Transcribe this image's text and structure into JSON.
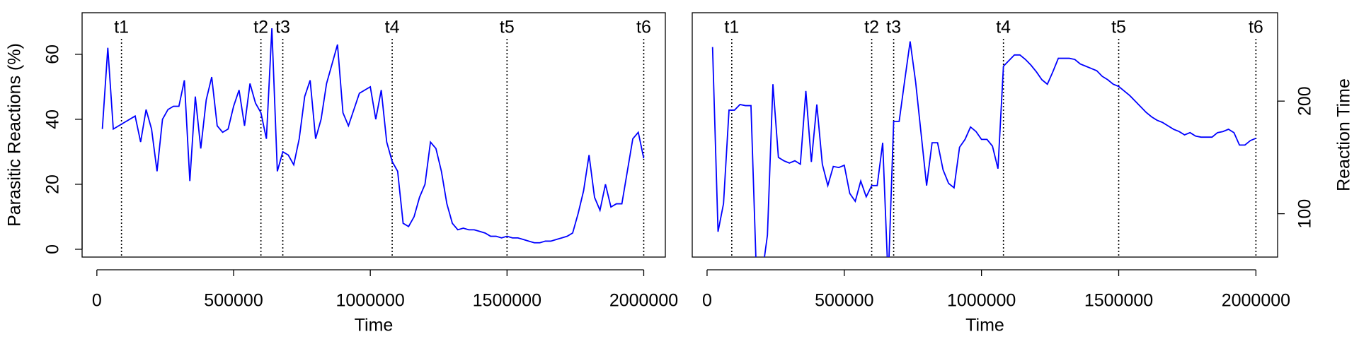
{
  "chart_data": [
    {
      "type": "line",
      "x_label": "Time",
      "y_label": "Parasitic Reactions (%)",
      "y_axis_side": "left",
      "xlim": [
        -54000,
        2079000
      ],
      "xticks": [
        0,
        500000,
        1000000,
        1500000,
        2000000
      ],
      "ylim": [
        -2.4,
        72.8
      ],
      "yticks": [
        0,
        20,
        40,
        60
      ],
      "vlines": [
        {
          "value": 90000,
          "label": "t1"
        },
        {
          "value": 600000,
          "label": "t2"
        },
        {
          "value": 680000,
          "label": "t3"
        },
        {
          "value": 1080000,
          "label": "t4"
        },
        {
          "value": 1500000,
          "label": "t5"
        },
        {
          "value": 2000000,
          "label": "t6"
        }
      ],
      "x": [
        20000,
        40000,
        60000,
        80000,
        100000,
        140000,
        160000,
        180000,
        200000,
        220000,
        240000,
        260000,
        280000,
        300000,
        320000,
        340000,
        360000,
        380000,
        400000,
        420000,
        440000,
        460000,
        480000,
        500000,
        520000,
        540000,
        560000,
        580000,
        600000,
        620000,
        640000,
        660000,
        680000,
        700000,
        720000,
        740000,
        760000,
        780000,
        800000,
        820000,
        840000,
        860000,
        880000,
        900000,
        920000,
        940000,
        960000,
        980000,
        1000000,
        1020000,
        1040000,
        1060000,
        1080000,
        1100000,
        1120000,
        1140000,
        1160000,
        1180000,
        1200000,
        1220000,
        1240000,
        1260000,
        1280000,
        1300000,
        1320000,
        1340000,
        1360000,
        1380000,
        1400000,
        1420000,
        1440000,
        1460000,
        1480000,
        1500000,
        1520000,
        1540000,
        1560000,
        1580000,
        1600000,
        1620000,
        1640000,
        1660000,
        1680000,
        1700000,
        1720000,
        1740000,
        1760000,
        1780000,
        1800000,
        1820000,
        1840000,
        1860000,
        1880000,
        1900000,
        1920000,
        1940000,
        1960000,
        1980000,
        2000000
      ],
      "series": [
        {
          "color": "#0000ff",
          "values": [
            37,
            62,
            37,
            38,
            39,
            41,
            33,
            43,
            37,
            24,
            40,
            43,
            44,
            44,
            52,
            21,
            47,
            31,
            46,
            53,
            38,
            36,
            37,
            44,
            49,
            38,
            51,
            45,
            42,
            34,
            68,
            24,
            30,
            29,
            26,
            34,
            47,
            52,
            34,
            40,
            51,
            57,
            63,
            42,
            38,
            43,
            48,
            49,
            50,
            40,
            49,
            33,
            27,
            24,
            8,
            7,
            10,
            16,
            20,
            33,
            31,
            24,
            14,
            8,
            6,
            6.5,
            6,
            6,
            5.5,
            5,
            4,
            4,
            3.5,
            4,
            3.5,
            3.5,
            3,
            2.5,
            2,
            2,
            2.5,
            2.5,
            3,
            3.5,
            4,
            5,
            11,
            18,
            29,
            16,
            12,
            20,
            13,
            14,
            14,
            24,
            34,
            36,
            28
          ]
        }
      ]
    },
    {
      "type": "line",
      "x_label": "Time",
      "y_label": "Reaction Time",
      "y_axis_side": "right",
      "xlim": [
        -54000,
        2079000
      ],
      "xticks": [
        0,
        500000,
        1000000,
        1500000,
        2000000
      ],
      "ylim": [
        61.5,
        278.5
      ],
      "yticks": [
        100,
        200
      ],
      "vlines": [
        {
          "value": 90000,
          "label": "t1"
        },
        {
          "value": 600000,
          "label": "t2"
        },
        {
          "value": 680000,
          "label": "t3"
        },
        {
          "value": 1080000,
          "label": "t4"
        },
        {
          "value": 1500000,
          "label": "t5"
        },
        {
          "value": 2000000,
          "label": "t6"
        }
      ],
      "x": [
        20000,
        40000,
        60000,
        80000,
        100000,
        120000,
        140000,
        160000,
        180000,
        200000,
        220000,
        240000,
        260000,
        280000,
        300000,
        320000,
        340000,
        360000,
        380000,
        400000,
        420000,
        440000,
        460000,
        480000,
        500000,
        520000,
        540000,
        560000,
        580000,
        600000,
        620000,
        640000,
        660000,
        680000,
        700000,
        720000,
        740000,
        760000,
        780000,
        800000,
        820000,
        840000,
        860000,
        880000,
        900000,
        920000,
        940000,
        960000,
        980000,
        1000000,
        1020000,
        1040000,
        1060000,
        1080000,
        1100000,
        1120000,
        1140000,
        1160000,
        1180000,
        1200000,
        1220000,
        1240000,
        1260000,
        1280000,
        1300000,
        1320000,
        1340000,
        1360000,
        1380000,
        1400000,
        1420000,
        1440000,
        1460000,
        1480000,
        1500000,
        1520000,
        1540000,
        1560000,
        1580000,
        1600000,
        1620000,
        1640000,
        1660000,
        1680000,
        1700000,
        1720000,
        1740000,
        1760000,
        1780000,
        1800000,
        1820000,
        1840000,
        1860000,
        1880000,
        1900000,
        1920000,
        1940000,
        1960000,
        1980000,
        2000000
      ],
      "series": [
        {
          "color": "#0000ff",
          "values": [
            248,
            84,
            109,
            192,
            192,
            197,
            196,
            196,
            45,
            45,
            81,
            215,
            150,
            147,
            145,
            147,
            144,
            209,
            146,
            197,
            144,
            125,
            142,
            141,
            143,
            118,
            111,
            129,
            115,
            125,
            125,
            163,
            40,
            182,
            182,
            218,
            253,
            217,
            171,
            125,
            163,
            163,
            139,
            127,
            123,
            159,
            166,
            177,
            173,
            166,
            166,
            160,
            140,
            231,
            236,
            241,
            241,
            237,
            232,
            226,
            219,
            215,
            226,
            238,
            238,
            238,
            237,
            233,
            231,
            229,
            227,
            222,
            219,
            215,
            213,
            209,
            205,
            200,
            195,
            190,
            186,
            183,
            181,
            178,
            175,
            173,
            170,
            172,
            169,
            168,
            168,
            168,
            172,
            173,
            175,
            172,
            161,
            161,
            165,
            167
          ]
        }
      ]
    }
  ]
}
